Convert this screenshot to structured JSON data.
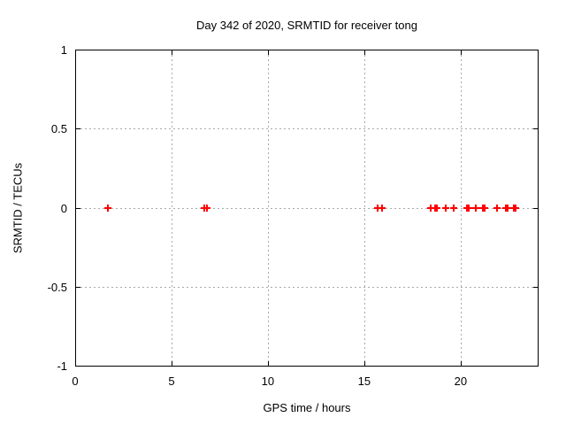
{
  "chart_data": {
    "type": "scatter",
    "title": "Day 342 of 2020, SRMTID for receiver tong",
    "xlabel": "GPS time / hours",
    "ylabel": "SRMTID / TECUs",
    "xlim": [
      0,
      24
    ],
    "ylim": [
      -1,
      1
    ],
    "xticks": [
      0,
      5,
      10,
      15,
      20
    ],
    "yticks": [
      1,
      0.5,
      0,
      -0.5,
      -1
    ],
    "grid": true,
    "legend_position": "none",
    "marker": "plus",
    "marker_color": "#ff0000",
    "grid_color": "#a8a8a8",
    "border_color": "#000000",
    "background_color": "#ffffff",
    "series": [
      {
        "name": "SRMTID",
        "x": [
          1.7,
          6.72,
          6.82,
          15.7,
          15.92,
          18.45,
          18.67,
          18.78,
          19.22,
          19.65,
          20.32,
          20.42,
          20.78,
          21.15,
          21.25,
          21.9,
          22.33,
          22.43,
          22.75,
          22.85
        ],
        "y": [
          0,
          0,
          0,
          0,
          0,
          0,
          0,
          0,
          0,
          0,
          0,
          0,
          0,
          0,
          0,
          0,
          0,
          0,
          0,
          0
        ]
      }
    ]
  }
}
